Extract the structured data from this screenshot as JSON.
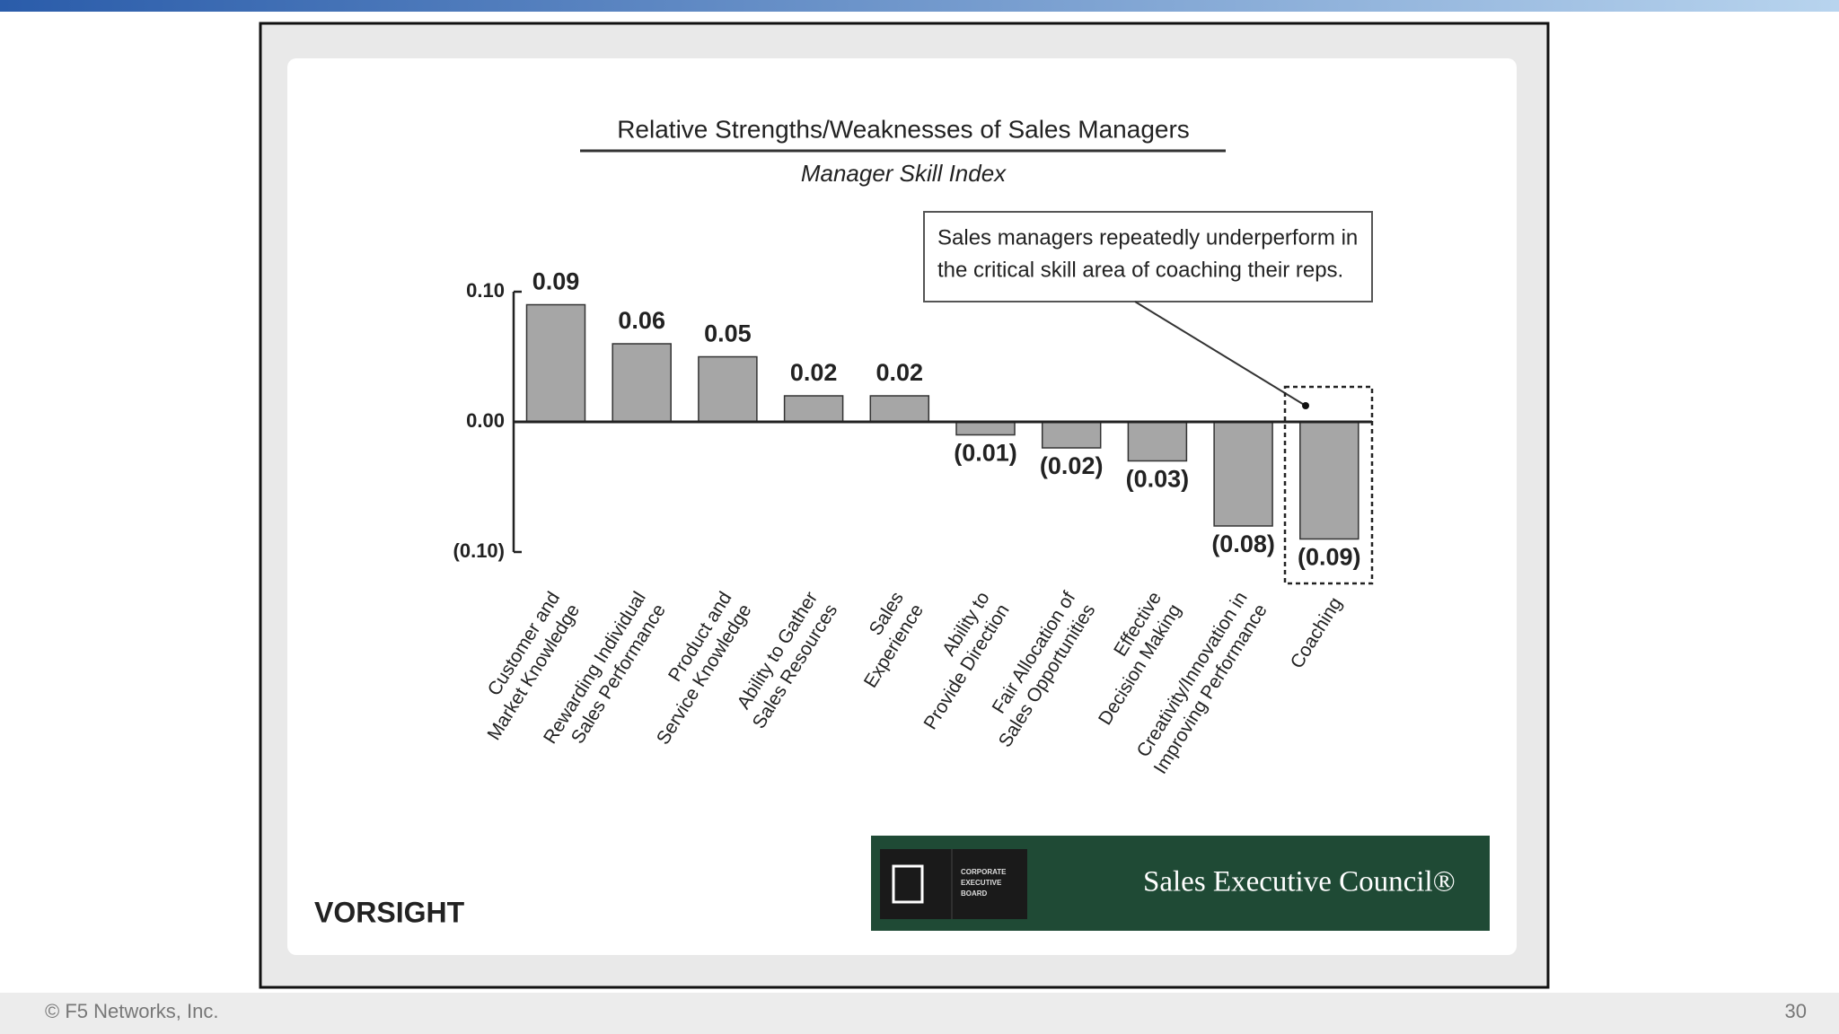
{
  "chart_data": {
    "type": "bar",
    "title": "Relative Strengths/Weaknesses of Sales Managers",
    "subtitle": "Manager Skill Index",
    "annotation": [
      "Sales managers repeatedly underperform in",
      "the critical skill area of coaching their reps."
    ],
    "categories": [
      "Customer and Market Knowledge",
      "Rewarding Individual Sales Performance",
      "Product and Service Knowledge",
      "Ability to Gather Sales Resources",
      "Sales Experience",
      "Ability to Provide Direction",
      "Fair Allocation of Sales Opportunities",
      "Effective Decision Making",
      "Creativity/Innovation in Improving Performance",
      "Coaching"
    ],
    "values": [
      0.09,
      0.06,
      0.05,
      0.02,
      0.02,
      -0.01,
      -0.02,
      -0.03,
      -0.08,
      -0.09
    ],
    "value_labels": [
      "0.09",
      "0.06",
      "0.05",
      "0.02",
      "0.02",
      "(0.01)",
      "(0.02)",
      "(0.03)",
      "(0.08)",
      "(0.09)"
    ],
    "color": "#a6a6a6",
    "ylim": [
      -0.1,
      0.1
    ],
    "yticks": [
      {
        "value": 0.1,
        "label": "0.10"
      },
      {
        "value": 0,
        "label": "0.00"
      },
      {
        "value": -0.1,
        "label": "(0.10)"
      }
    ]
  },
  "logos": {
    "left": "VORSIGHT",
    "board": [
      "CORPORATE",
      "EXECUTIVE",
      "BOARD"
    ],
    "council": "Sales Executive Council®"
  },
  "footer": {
    "copyright": "© F5 Networks, Inc.",
    "page": "30"
  }
}
